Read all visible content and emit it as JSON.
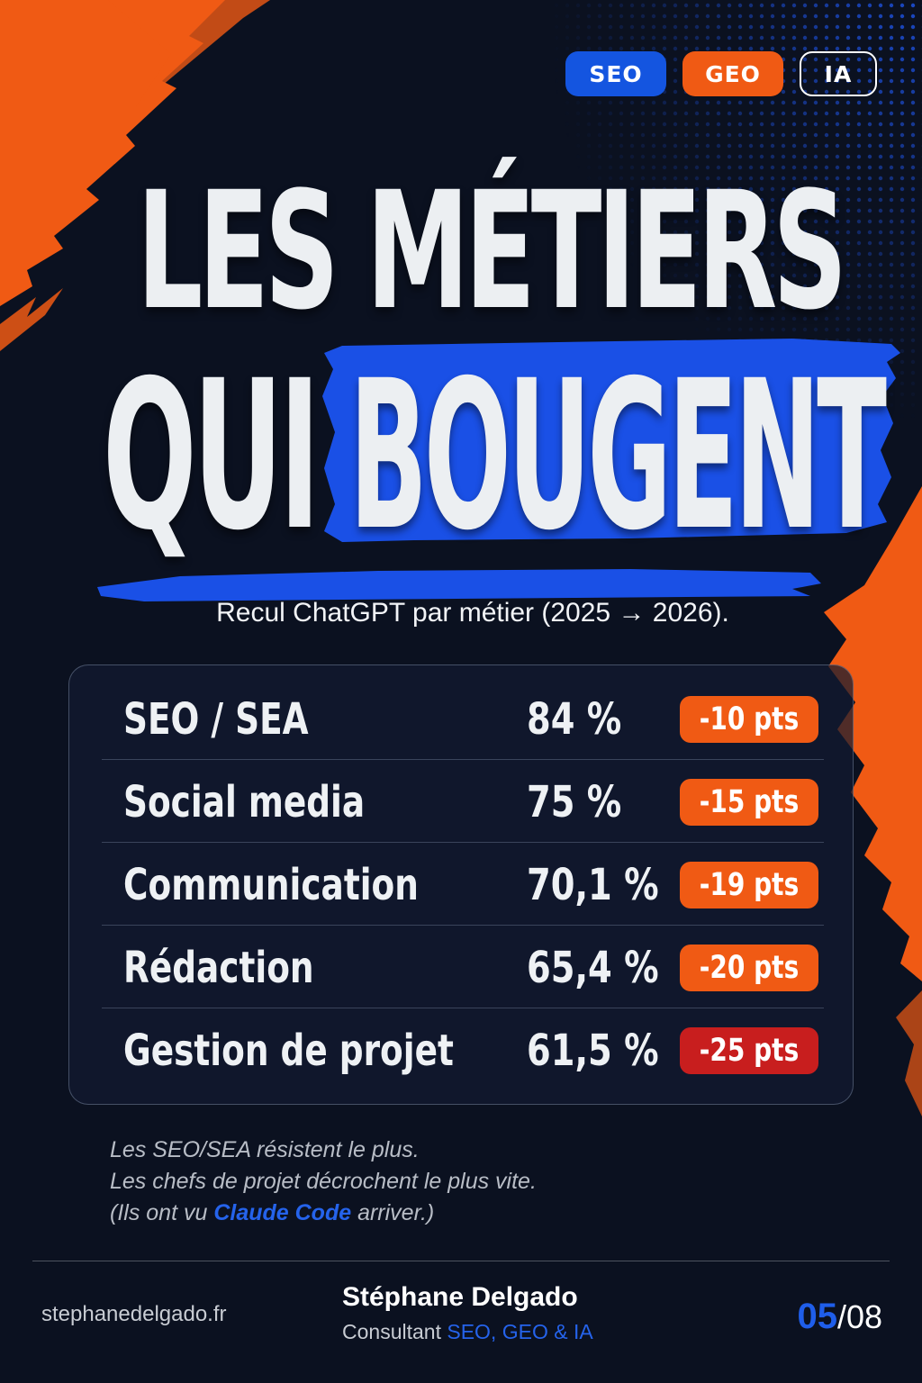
{
  "tags": [
    {
      "label": "SEO",
      "color": "#1455e0"
    },
    {
      "label": "GEO",
      "color": "#f05a14"
    },
    {
      "label": "IA",
      "color": "outline-white"
    }
  ],
  "title": {
    "line1": "LES MÉTIERS",
    "line2_part1": "QUI",
    "line2_part2": "BOUGENT"
  },
  "subtitle": "Recul ChatGPT par métier (2025 → 2026).",
  "rows": [
    {
      "metier": "SEO / SEA",
      "pct": "84 %",
      "delta": "-10 pts",
      "badge_color": "#f05a14"
    },
    {
      "metier": "Social media",
      "pct": "75 %",
      "delta": "-15 pts",
      "badge_color": "#f05a14"
    },
    {
      "metier": "Communication",
      "pct": "70,1 %",
      "delta": "-19 pts",
      "badge_color": "#f05a14"
    },
    {
      "metier": "Rédaction",
      "pct": "65,4 %",
      "delta": "-20 pts",
      "badge_color": "#f05a14"
    },
    {
      "metier": "Gestion de projet",
      "pct": "61,5 %",
      "delta": "-25 pts",
      "badge_color": "#c81e1e"
    }
  ],
  "note": {
    "line1": "Les SEO/SEA résistent le plus.",
    "line2": "Les chefs de projet décrochent le plus vite.",
    "line3_before": "(Ils ont vu ",
    "line3_highlight": "Claude Code",
    "line3_after": " arriver.)"
  },
  "footer": {
    "site": "stephanedelgado.fr",
    "author": "Stéphane Delgado",
    "role_prefix": "Consultant ",
    "role_highlight": "SEO, GEO & IA",
    "page_current": "05",
    "page_total": "/08"
  },
  "colors": {
    "background": "#0b1120",
    "accent_blue": "#1455e0",
    "accent_orange": "#f05a14",
    "danger_red": "#c81e1e"
  }
}
